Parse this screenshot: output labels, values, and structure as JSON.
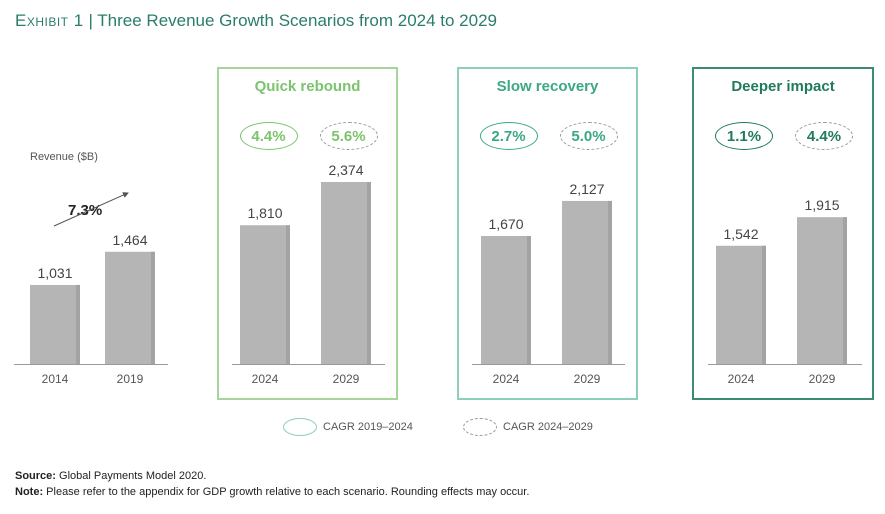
{
  "header": {
    "exhibit": "Exhibit 1",
    "separator": "|",
    "title": "Three Revenue Growth Scenarios from 2024 to 2029"
  },
  "historical": {
    "ylabel": "Revenue ($B)",
    "cagr": "7.3%"
  },
  "panels": [
    {
      "title": "Quick rebound",
      "cagr_2019_2024": "4.4%",
      "cagr_2024_2029": "5.6%",
      "color": "#7cc36e",
      "border": "#a5d59b"
    },
    {
      "title": "Slow recovery",
      "cagr_2019_2024": "2.7%",
      "cagr_2024_2029": "5.0%",
      "color": "#3aa883",
      "border": "#8fcfb8"
    },
    {
      "title": "Deeper impact",
      "cagr_2019_2024": "1.1%",
      "cagr_2024_2029": "4.4%",
      "color": "#1f7a5e",
      "border": "#3a8d73"
    }
  ],
  "legend": {
    "solid_label": "CAGR 2019–2024",
    "dashed_label": "CAGR 2024–2029"
  },
  "footer": {
    "source_label": "Source:",
    "source_text": " Global Payments Model 2020.",
    "note_label": "Note:",
    "note_text": " Please refer to the appendix for GDP growth relative to each scenario. Rounding effects may occur."
  },
  "chart_data": {
    "type": "bar",
    "title": "Three Revenue Growth Scenarios from 2024 to 2029",
    "ylabel": "Revenue ($B)",
    "groups": [
      {
        "name": "",
        "categories": [
          "2014",
          "2019"
        ],
        "values": [
          1031,
          1464
        ],
        "labels": [
          "1,031",
          "1,464"
        ]
      },
      {
        "name": "Quick rebound",
        "categories": [
          "2024",
          "2029"
        ],
        "values": [
          1810,
          2374
        ],
        "labels": [
          "1,810",
          "2,374"
        ]
      },
      {
        "name": "Slow recovery",
        "categories": [
          "2024",
          "2029"
        ],
        "values": [
          1670,
          2127
        ],
        "labels": [
          "1,670",
          "2,127"
        ]
      },
      {
        "name": "Deeper impact",
        "categories": [
          "2024",
          "2029"
        ],
        "values": [
          1542,
          1915
        ],
        "labels": [
          "1,542",
          "1,915"
        ]
      }
    ],
    "bar_color": "#b5b5b5",
    "ylim": [
      0,
      2374
    ]
  }
}
